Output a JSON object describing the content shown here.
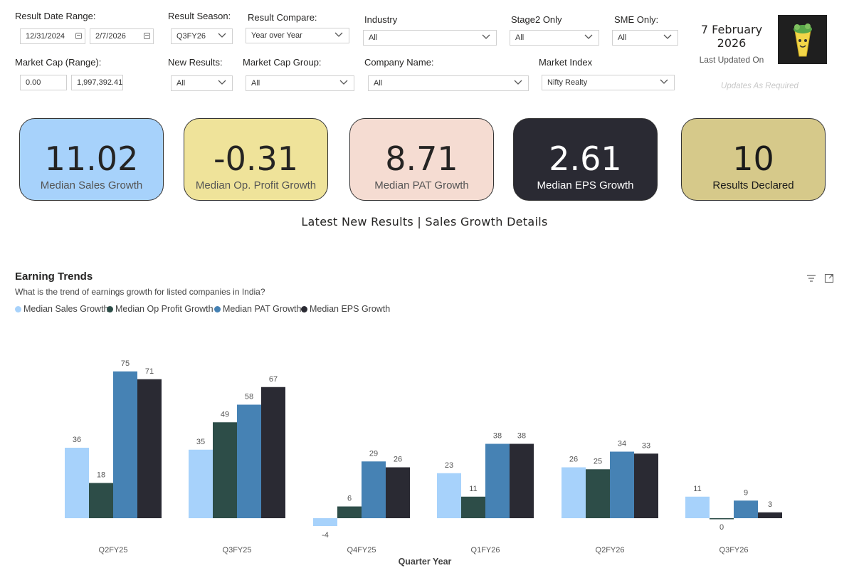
{
  "filters": {
    "result_date_range": {
      "label": "Result Date Range:",
      "start": "12/31/2024",
      "end": "2/7/2026"
    },
    "result_season": {
      "label": "Result Season:",
      "value": "Q3FY26"
    },
    "result_compare": {
      "label": "Result Compare:",
      "value": "Year over Year"
    },
    "industry": {
      "label": "Industry",
      "value": "All"
    },
    "stage2_only": {
      "label": "Stage2 Only",
      "value": "All"
    },
    "sme_only": {
      "label": "SME Only:",
      "value": "All"
    },
    "market_cap_range": {
      "label": "Market Cap (Range):",
      "min": "0.00",
      "max": "1,997,392.41"
    },
    "new_results": {
      "label": "New Results:",
      "value": "All"
    },
    "market_cap_group": {
      "label": "Market Cap Group:",
      "value": "All"
    },
    "company_name": {
      "label": "Company Name:",
      "value": "All"
    },
    "market_index": {
      "label": "Market Index",
      "value": "Nifty Realty"
    }
  },
  "update_info": {
    "date": "7 February 2026",
    "last_updated_label": "Last Updated On",
    "note": "Updates As Required"
  },
  "kpis": [
    {
      "value": "11.02",
      "label": "Median Sales Growth",
      "bg": "#a7d2fb",
      "fg": "#252423",
      "label_color": "#555555"
    },
    {
      "value": "-0.31",
      "label": "Median Op. Profit Growth",
      "bg": "#efe39a",
      "fg": "#252423",
      "label_color": "#555555"
    },
    {
      "value": "8.71",
      "label": "Median PAT Growth",
      "bg": "#f5dcd2",
      "fg": "#252423",
      "label_color": "#555555"
    },
    {
      "value": "2.61",
      "label": "Median EPS Growth",
      "bg": "#2a2a33",
      "fg": "#ffffff",
      "label_color": "#ffffff"
    },
    {
      "value": "10",
      "label": "Results Declared",
      "bg": "#d6c98a",
      "fg": "#1a1a1a",
      "label_color": "#1a1a1a"
    }
  ],
  "section_title": "Latest New Results | Sales Growth Details",
  "chart_header": {
    "title": "Earning Trends",
    "subtitle": "What is the trend of earnings growth for listed companies in India?"
  },
  "chart_data": {
    "type": "bar",
    "title": "Earning Trends",
    "xlabel": "Quarter Year",
    "ylabel": "",
    "ylim": [
      -5,
      80
    ],
    "categories": [
      "Q2FY25",
      "Q3FY25",
      "Q4FY25",
      "Q1FY26",
      "Q2FY26",
      "Q3FY26"
    ],
    "series": [
      {
        "name": "Median Sales Growth",
        "color": "#a7d2fb",
        "values": [
          36,
          35,
          -4,
          23,
          26,
          11
        ]
      },
      {
        "name": "Median Op Profit Growth",
        "color": "#2d4d48",
        "values": [
          18,
          49,
          6,
          11,
          25,
          0
        ]
      },
      {
        "name": "Median PAT Growth",
        "color": "#4682b4",
        "values": [
          75,
          58,
          29,
          38,
          34,
          9
        ]
      },
      {
        "name": "Median EPS Growth",
        "color": "#2a2a33",
        "values": [
          71,
          67,
          26,
          38,
          33,
          3
        ]
      }
    ]
  },
  "icons": {
    "filter": "filter-icon",
    "focus": "focus-mode-icon",
    "logo": "logo-icon"
  }
}
